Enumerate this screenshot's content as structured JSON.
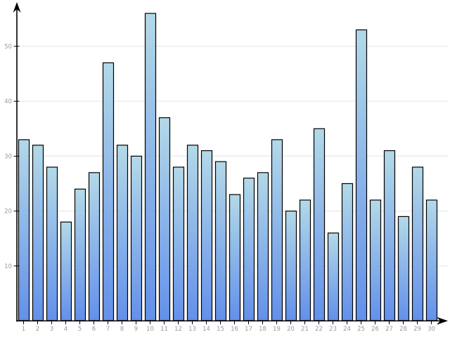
{
  "chart_data": {
    "type": "bar",
    "title": "",
    "xlabel": "",
    "ylabel": "",
    "categories": [
      "1",
      "2",
      "3",
      "4",
      "5",
      "6",
      "7",
      "8",
      "9",
      "10",
      "11",
      "12",
      "13",
      "14",
      "15",
      "16",
      "17",
      "18",
      "19",
      "20",
      "21",
      "22",
      "23",
      "24",
      "25",
      "26",
      "27",
      "28",
      "29",
      "30"
    ],
    "values": [
      33,
      32,
      28,
      18,
      24,
      27,
      47,
      32,
      30,
      56,
      37,
      28,
      32,
      31,
      29,
      23,
      26,
      27,
      33,
      20,
      22,
      35,
      16,
      25,
      53,
      22,
      31,
      19,
      28,
      22
    ],
    "ylim": [
      0,
      57.5
    ],
    "yticks": [
      10,
      20,
      30,
      40,
      50
    ],
    "grid": true,
    "legend": false,
    "colors": {
      "background": "#ffffff",
      "bar_gradient_top": "#b3d9e8",
      "bar_gradient_bottom": "#6390ea",
      "bar_border": "#000000",
      "gridline": "#e8e8e8",
      "axis": "#000000",
      "tick_label": "#999999"
    }
  }
}
